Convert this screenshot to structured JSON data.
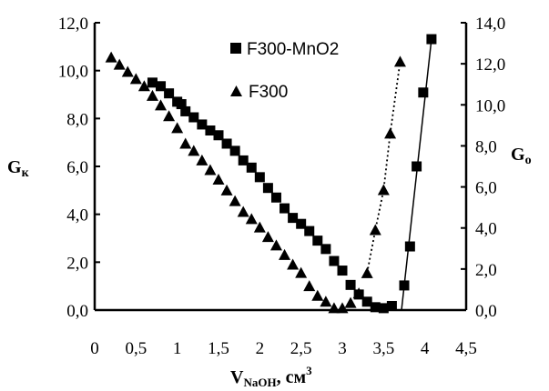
{
  "chart_data": {
    "type": "scatter",
    "xlim": [
      0,
      4.5
    ],
    "ylim_left": [
      0,
      12
    ],
    "ylim_right": [
      0,
      14
    ],
    "x_ticks": [
      "0",
      "0,5",
      "1",
      "1,5",
      "2",
      "2,5",
      "3",
      "3,5",
      "4",
      "4,5"
    ],
    "y_left_ticks": [
      "0,0",
      "2,0",
      "4,0",
      "6,0",
      "8,0",
      "10,0",
      "12,0"
    ],
    "y_right_ticks": [
      "0,0",
      "2,0",
      "4,0",
      "6,0",
      "8,0",
      "10,0",
      "12,0",
      "14,0"
    ],
    "xlabel": {
      "main": "V",
      "sub": "NaOH",
      "tail": ", см",
      "sup": "3"
    },
    "ylabel_left": {
      "main": "G",
      "sub": "к"
    },
    "ylabel_right": {
      "main": "G",
      "sub": "о"
    },
    "legend_position": "top-center",
    "series": [
      {
        "name": "F300-MnO2",
        "marker": "square",
        "color": "#000000",
        "points_left": [
          [
            0.7,
            9.5
          ],
          [
            0.8,
            9.35
          ],
          [
            0.9,
            9.05
          ],
          [
            1.0,
            8.7
          ],
          [
            1.05,
            8.6
          ],
          [
            1.1,
            8.3
          ],
          [
            1.2,
            8.05
          ],
          [
            1.3,
            7.75
          ],
          [
            1.4,
            7.5
          ],
          [
            1.5,
            7.3
          ],
          [
            1.6,
            6.95
          ],
          [
            1.7,
            6.65
          ],
          [
            1.8,
            6.25
          ],
          [
            1.9,
            5.95
          ],
          [
            2.0,
            5.55
          ],
          [
            2.1,
            5.1
          ],
          [
            2.2,
            4.7
          ],
          [
            2.3,
            4.25
          ],
          [
            2.4,
            3.85
          ],
          [
            2.5,
            3.6
          ],
          [
            2.6,
            3.3
          ],
          [
            2.7,
            2.9
          ],
          [
            2.8,
            2.55
          ],
          [
            2.9,
            2.05
          ],
          [
            3.0,
            1.65
          ],
          [
            3.1,
            1.05
          ],
          [
            3.2,
            0.65
          ],
          [
            3.3,
            0.35
          ],
          [
            3.4,
            0.12
          ],
          [
            3.5,
            0.08
          ]
        ],
        "points_right": [
          [
            3.6,
            0.2
          ],
          [
            3.75,
            1.2
          ],
          [
            3.82,
            3.1
          ],
          [
            3.9,
            7.0
          ],
          [
            3.98,
            10.6
          ],
          [
            4.08,
            13.2
          ]
        ]
      },
      {
        "name": "F300",
        "marker": "triangle",
        "color": "#000000",
        "points_left": [
          [
            0.2,
            10.55
          ],
          [
            0.3,
            10.25
          ],
          [
            0.4,
            9.95
          ],
          [
            0.5,
            9.65
          ],
          [
            0.6,
            9.35
          ],
          [
            0.7,
            8.95
          ],
          [
            0.8,
            8.55
          ],
          [
            0.9,
            8.1
          ],
          [
            1.0,
            7.6
          ],
          [
            1.1,
            6.95
          ],
          [
            1.2,
            6.65
          ],
          [
            1.3,
            6.25
          ],
          [
            1.4,
            5.85
          ],
          [
            1.5,
            5.45
          ],
          [
            1.6,
            5.0
          ],
          [
            1.7,
            4.55
          ],
          [
            1.8,
            4.1
          ],
          [
            1.9,
            3.8
          ],
          [
            2.0,
            3.45
          ],
          [
            2.1,
            3.05
          ],
          [
            2.2,
            2.7
          ],
          [
            2.3,
            2.3
          ],
          [
            2.4,
            1.9
          ],
          [
            2.5,
            1.55
          ],
          [
            2.6,
            1.0
          ],
          [
            2.7,
            0.6
          ],
          [
            2.8,
            0.35
          ],
          [
            2.9,
            0.08
          ],
          [
            3.0,
            0.08
          ],
          [
            3.1,
            0.3
          ],
          [
            3.2,
            0.7
          ]
        ],
        "points_right": [
          [
            3.3,
            1.8
          ],
          [
            3.4,
            3.9
          ],
          [
            3.5,
            5.85
          ],
          [
            3.58,
            8.6
          ],
          [
            3.7,
            12.1
          ]
        ]
      }
    ]
  }
}
